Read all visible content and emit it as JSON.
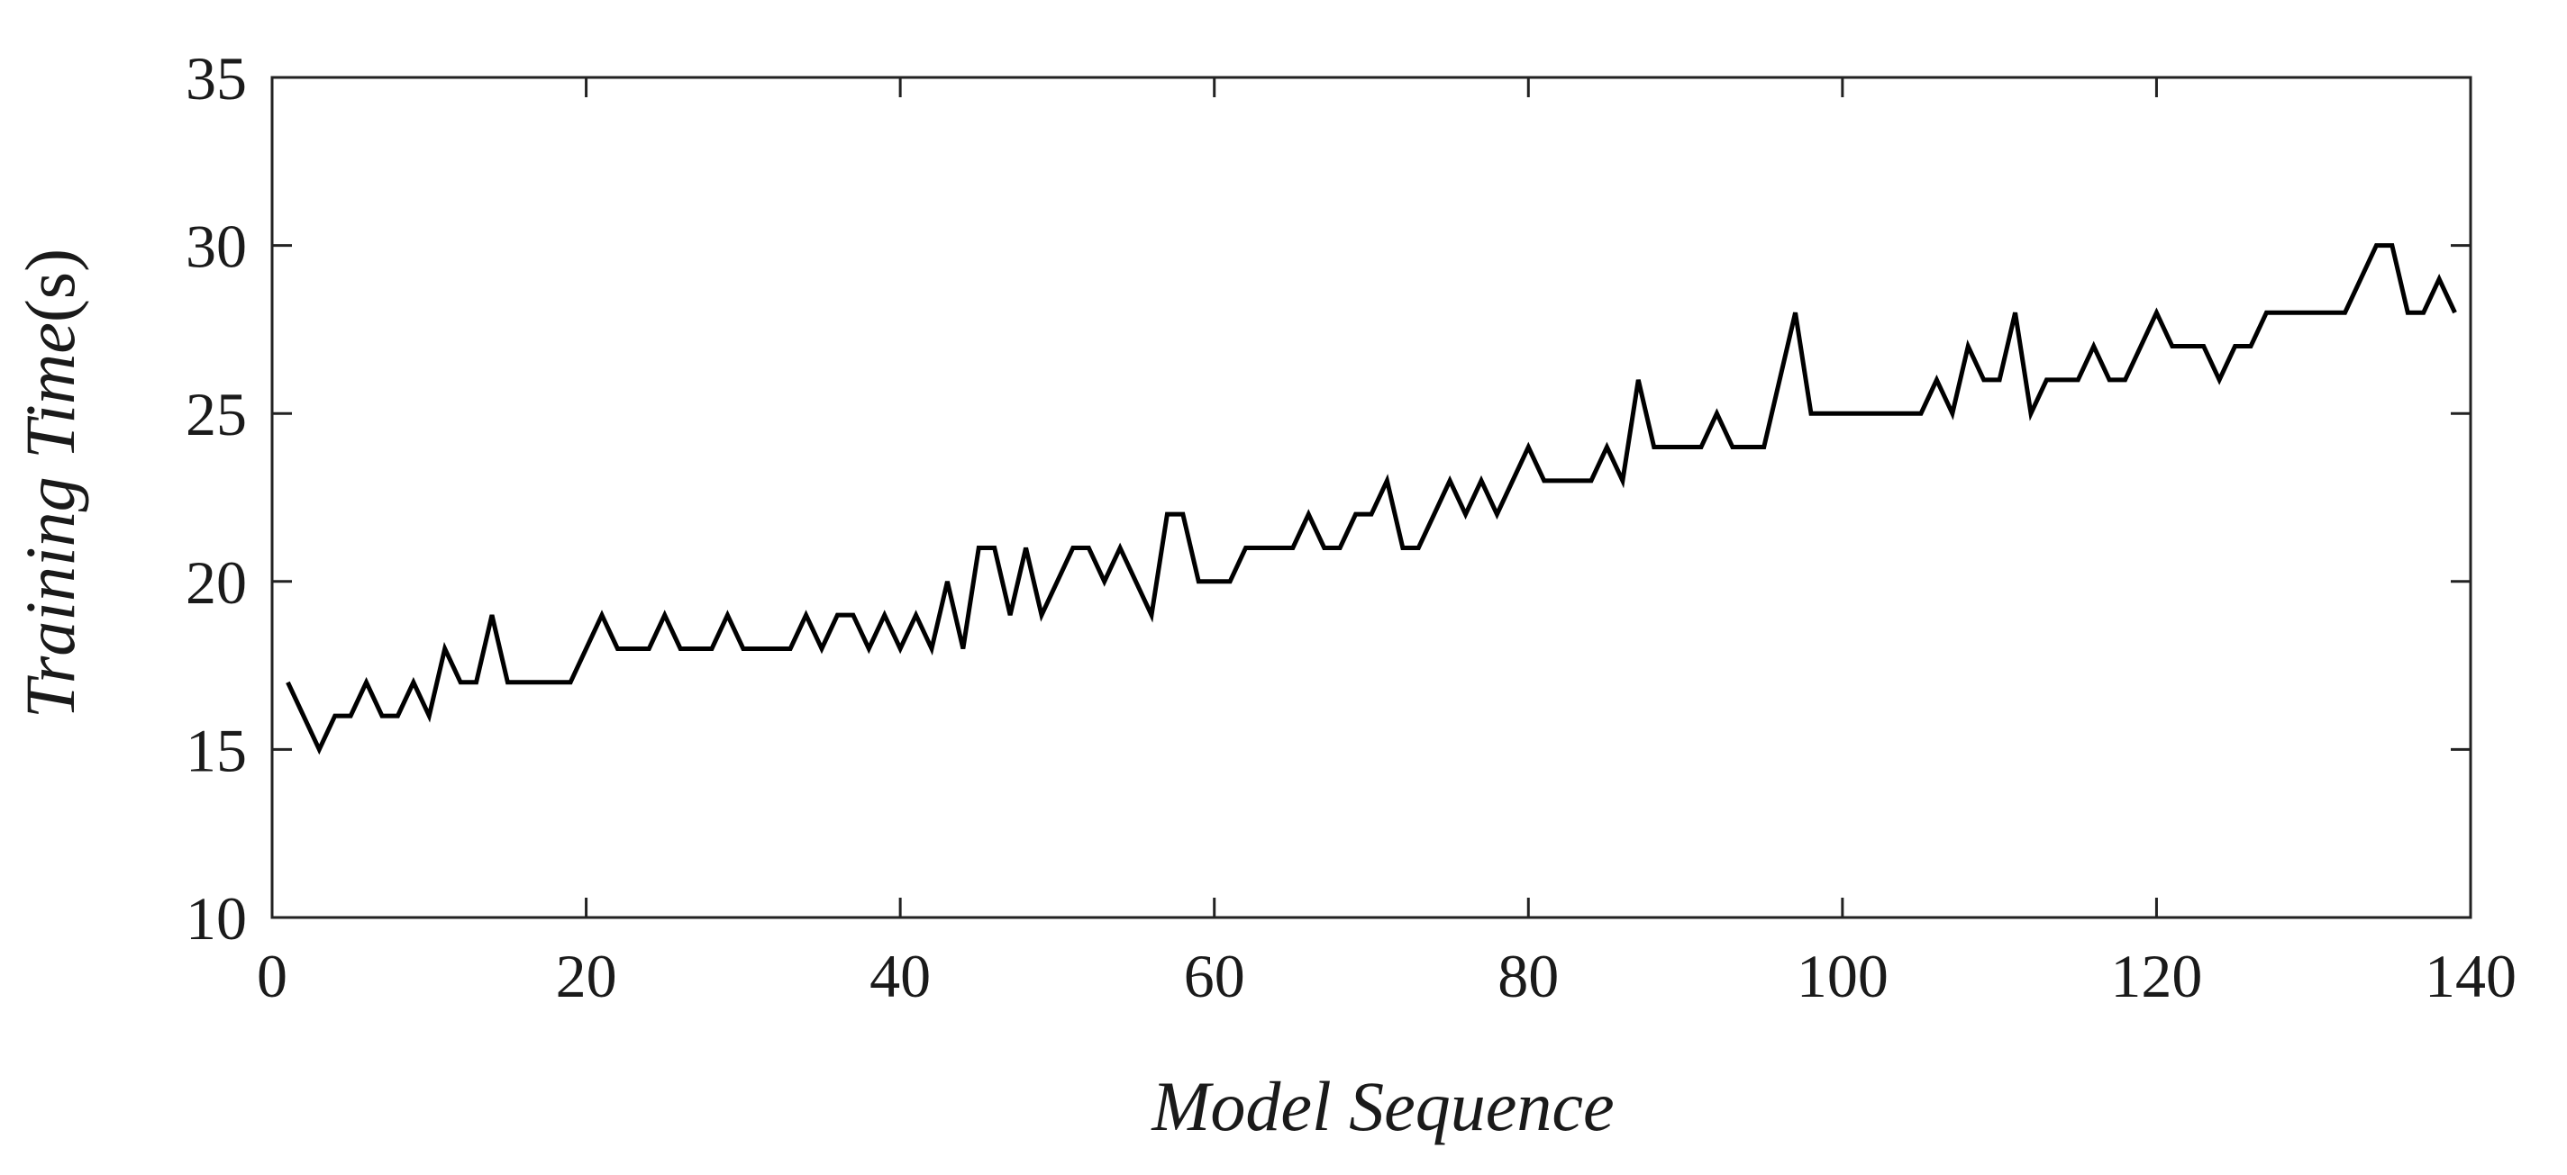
{
  "chart_data": {
    "type": "line",
    "xlabel": "Model Sequence",
    "ylabel": {
      "italic_part": "Training Time",
      "unit_part": "(s)"
    },
    "xlim": [
      0,
      140
    ],
    "ylim": [
      10,
      35
    ],
    "xticks": [
      0,
      20,
      40,
      60,
      80,
      100,
      120,
      140
    ],
    "yticks": [
      10,
      15,
      20,
      25,
      30,
      35
    ],
    "grid": false,
    "line_color": "#000000",
    "series": [
      {
        "x": [
          1,
          2,
          3,
          4,
          5,
          6,
          7,
          8,
          9,
          10,
          11,
          12,
          13,
          14,
          15,
          16,
          17,
          18,
          19,
          20,
          21,
          22,
          23,
          24,
          25,
          26,
          27,
          28,
          29,
          30,
          31,
          32,
          33,
          34,
          35,
          36,
          37,
          38,
          39,
          40,
          41,
          42,
          43,
          44,
          45,
          46,
          47,
          48,
          49,
          50,
          51,
          52,
          53,
          54,
          55,
          56,
          57,
          58,
          59,
          60,
          61,
          62,
          63,
          64,
          65,
          66,
          67,
          68,
          69,
          70,
          71,
          72,
          73,
          74,
          75,
          76,
          77,
          78,
          79,
          80,
          81,
          82,
          83,
          84,
          85,
          86,
          87,
          88,
          89,
          90,
          91,
          92,
          93,
          94,
          95,
          96,
          97,
          98,
          99,
          100,
          101,
          102,
          103,
          104,
          105,
          106,
          107,
          108,
          109,
          110,
          111,
          112,
          113,
          114,
          115,
          116,
          117,
          118,
          119,
          120,
          121,
          122,
          123,
          124,
          125,
          126,
          127,
          128,
          129,
          130,
          131,
          132,
          133,
          134,
          135,
          136,
          137,
          138,
          139
        ],
        "values": [
          17,
          16,
          15,
          16,
          16,
          17,
          16,
          16,
          17,
          16,
          18,
          17,
          17,
          19,
          17,
          17,
          17,
          17,
          17,
          18,
          19,
          18,
          18,
          18,
          19,
          18,
          18,
          18,
          19,
          18,
          18,
          18,
          18,
          19,
          18,
          19,
          19,
          18,
          19,
          18,
          19,
          18,
          20,
          18,
          21,
          21,
          19,
          21,
          19,
          20,
          21,
          21,
          20,
          21,
          20,
          19,
          22,
          22,
          20,
          20,
          20,
          21,
          21,
          21,
          21,
          22,
          21,
          21,
          22,
          22,
          23,
          21,
          21,
          22,
          23,
          22,
          23,
          22,
          23,
          24,
          23,
          23,
          23,
          23,
          24,
          23,
          26,
          24,
          24,
          24,
          24,
          25,
          24,
          24,
          24,
          26,
          28,
          25,
          25,
          25,
          25,
          25,
          25,
          25,
          25,
          26,
          25,
          27,
          26,
          26,
          28,
          25,
          26,
          26,
          26,
          27,
          26,
          26,
          27,
          28,
          27,
          27,
          27,
          26,
          27,
          27,
          28,
          28,
          28,
          28,
          28,
          28,
          29,
          30,
          30,
          28,
          28,
          29,
          28
        ]
      }
    ]
  }
}
